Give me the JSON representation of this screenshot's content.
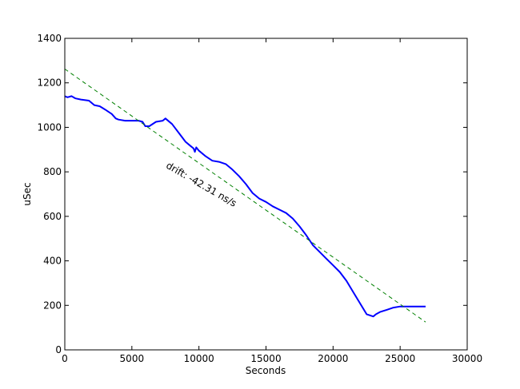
{
  "chart_data": {
    "type": "line",
    "title": "",
    "xlabel": "Seconds",
    "ylabel": "uSec",
    "xlim": [
      0,
      30000
    ],
    "ylim": [
      0,
      1400
    ],
    "xticks": [
      0,
      5000,
      10000,
      15000,
      20000,
      25000,
      30000
    ],
    "yticks": [
      0,
      200,
      400,
      600,
      800,
      1000,
      1200,
      1400
    ],
    "xtick_labels": [
      "0",
      "5000",
      "10000",
      "15000",
      "20000",
      "25000",
      "30000"
    ],
    "ytick_labels": [
      "0",
      "200",
      "400",
      "600",
      "800",
      "1000",
      "1200",
      "1400"
    ],
    "grid": false,
    "series": [
      {
        "color": "#0000ff",
        "style": "solid",
        "x": [
          0,
          200,
          500,
          800,
          1200,
          1800,
          2200,
          2600,
          3000,
          3500,
          3800,
          4000,
          4500,
          5000,
          5500,
          5800,
          6000,
          6300,
          6800,
          7300,
          7500,
          8000,
          8500,
          9000,
          9300,
          9600,
          9700,
          9800,
          10000,
          10500,
          11000,
          11500,
          12000,
          12500,
          13000,
          13500,
          14000,
          14500,
          15000,
          15500,
          16000,
          16500,
          17000,
          17500,
          18000,
          18500,
          19000,
          19500,
          20000,
          20500,
          21000,
          21500,
          22000,
          22500,
          23000,
          23200,
          23500,
          24000,
          24500,
          25000,
          25500,
          26000,
          26500,
          26900
        ],
        "y": [
          1140,
          1135,
          1140,
          1130,
          1125,
          1120,
          1100,
          1095,
          1080,
          1060,
          1040,
          1035,
          1030,
          1030,
          1030,
          1025,
          1005,
          1005,
          1025,
          1030,
          1040,
          1015,
          975,
          935,
          920,
          905,
          890,
          910,
          895,
          870,
          850,
          845,
          835,
          810,
          780,
          745,
          705,
          680,
          665,
          645,
          630,
          615,
          590,
          555,
          515,
          470,
          440,
          410,
          380,
          350,
          310,
          260,
          210,
          160,
          150,
          160,
          170,
          180,
          190,
          195,
          195,
          195,
          195,
          195
        ]
      },
      {
        "color": "#008000",
        "style": "dashed",
        "x": [
          0,
          26900
        ],
        "y": [
          1262,
          125
        ]
      }
    ],
    "annotations": [
      {
        "text": "drift: -42.31 ns/s",
        "x": 7500,
        "y": 820,
        "rotation": -30
      }
    ]
  }
}
